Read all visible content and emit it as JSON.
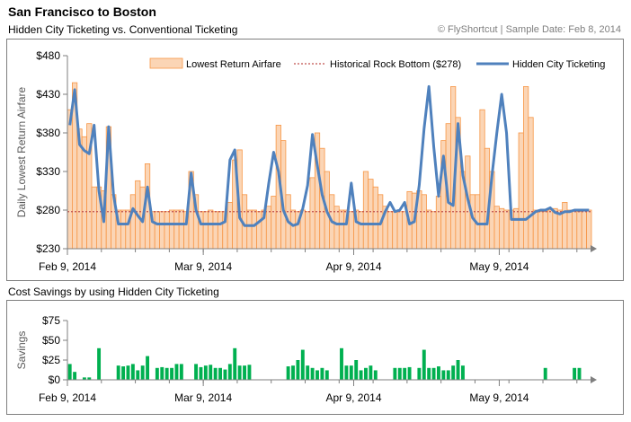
{
  "header": {
    "title": "San Francisco to Boston",
    "subtitle": "Hidden City Ticketing vs. Conventional Ticketing",
    "credit": "© FlyShortcut |  Sample Date: Feb 8, 2014"
  },
  "section2_title": "Cost Savings by using Hidden City Ticketing",
  "colors": {
    "bar_fill": "#fbd5b5",
    "bar_stroke": "#f79646",
    "rock_bottom": "#c0504d",
    "hidden_line": "#4f81bd",
    "savings_bar": "#00b050",
    "axis": "#7f7f7f"
  },
  "chart_data": [
    {
      "type": "bar+line",
      "title": "",
      "xlabel": "",
      "ylabel": "Daily Lowest Return Airfare",
      "ylim": [
        230,
        480
      ],
      "yticks": [
        480,
        430,
        380,
        330,
        280,
        230
      ],
      "ytick_labels": [
        "$480",
        "$430",
        "$380",
        "$330",
        "$280",
        "$230"
      ],
      "x_start": "Feb 9, 2014",
      "x_end": "May 9, 2014",
      "xtick_labels": [
        "Feb 9, 2014",
        "Mar 9, 2014",
        "Apr 9, 2014",
        "May 9, 2014"
      ],
      "legend_position": "top",
      "grid": false,
      "series": [
        {
          "name": "Lowest Return Airfare",
          "kind": "bar",
          "values": [
            410,
            445,
            385,
            375,
            392,
            310,
            310,
            305,
            388,
            300,
            280,
            280,
            280,
            300,
            318,
            310,
            340,
            278,
            278,
            278,
            278,
            280,
            280,
            280,
            278,
            330,
            300,
            278,
            278,
            280,
            278,
            278,
            278,
            290,
            345,
            358,
            300,
            280,
            280,
            278,
            280,
            285,
            298,
            390,
            370,
            300,
            280,
            278,
            280,
            278,
            322,
            380,
            360,
            330,
            300,
            285,
            280,
            280,
            278,
            280,
            278,
            330,
            320,
            310,
            300,
            285,
            278,
            278,
            278,
            278,
            304,
            302,
            305,
            300,
            280,
            278,
            298,
            370,
            392,
            440,
            400,
            330,
            350,
            300,
            300,
            410,
            360,
            330,
            285,
            282,
            280,
            280,
            282,
            380,
            440,
            400,
            280,
            278,
            278,
            280,
            282,
            280,
            290,
            280,
            280,
            278,
            280,
            280
          ]
        },
        {
          "name": "Historical Rock Bottom ($278)",
          "kind": "reference",
          "value": 278
        },
        {
          "name": "Hidden City Ticketing",
          "kind": "line",
          "values": [
            390,
            436,
            365,
            357,
            353,
            390,
            305,
            265,
            388,
            300,
            262,
            262,
            262,
            282,
            273,
            265,
            310,
            265,
            262,
            262,
            262,
            262,
            262,
            262,
            262,
            328,
            280,
            262,
            262,
            262,
            262,
            262,
            265,
            345,
            358,
            270,
            260,
            260,
            260,
            265,
            270,
            315,
            355,
            330,
            280,
            265,
            260,
            262,
            282,
            312,
            378,
            338,
            300,
            278,
            265,
            262,
            262,
            262,
            315,
            265,
            262,
            262,
            262,
            262,
            262,
            278,
            290,
            278,
            280,
            290,
            262,
            265,
            312,
            385,
            440,
            362,
            298,
            350,
            290,
            286,
            392,
            325,
            295,
            270,
            262,
            262,
            262,
            325,
            380,
            430,
            380,
            268,
            268,
            268,
            268,
            273,
            278,
            280,
            280,
            283,
            277,
            275,
            278,
            278,
            280,
            280,
            280,
            280
          ]
        }
      ]
    },
    {
      "type": "bar",
      "title": "Cost Savings by using Hidden City Ticketing",
      "xlabel": "",
      "ylabel": "Savings",
      "ylim": [
        0,
        75
      ],
      "yticks": [
        75,
        50,
        25,
        0
      ],
      "ytick_labels": [
        "$75",
        "$50",
        "$25",
        "$0"
      ],
      "x_start": "Feb 9, 2014",
      "x_end": "May 9, 2014",
      "xtick_labels": [
        "Feb 9, 2014",
        "Mar 9, 2014",
        "Apr 9, 2014",
        "May 9, 2014"
      ],
      "grid": false,
      "series": [
        {
          "name": "Savings",
          "values": [
            20,
            10,
            0,
            3,
            3,
            0,
            40,
            0,
            0,
            0,
            18,
            17,
            18,
            20,
            12,
            18,
            30,
            0,
            15,
            16,
            15,
            15,
            20,
            20,
            0,
            0,
            20,
            16,
            18,
            19,
            15,
            15,
            13,
            20,
            40,
            18,
            18,
            19,
            0,
            0,
            0,
            0,
            0,
            0,
            0,
            17,
            18,
            25,
            38,
            18,
            15,
            12,
            15,
            12,
            0,
            0,
            40,
            18,
            18,
            25,
            12,
            15,
            18,
            12,
            0,
            0,
            0,
            15,
            15,
            15,
            16,
            0,
            15,
            38,
            15,
            15,
            17,
            12,
            12,
            18,
            25,
            18,
            0,
            0,
            0,
            0,
            0,
            0,
            0,
            0,
            0,
            0,
            0,
            0,
            0,
            0,
            0,
            0,
            15,
            0,
            0,
            0,
            0,
            0,
            15,
            15,
            0,
            0
          ]
        }
      ]
    }
  ]
}
